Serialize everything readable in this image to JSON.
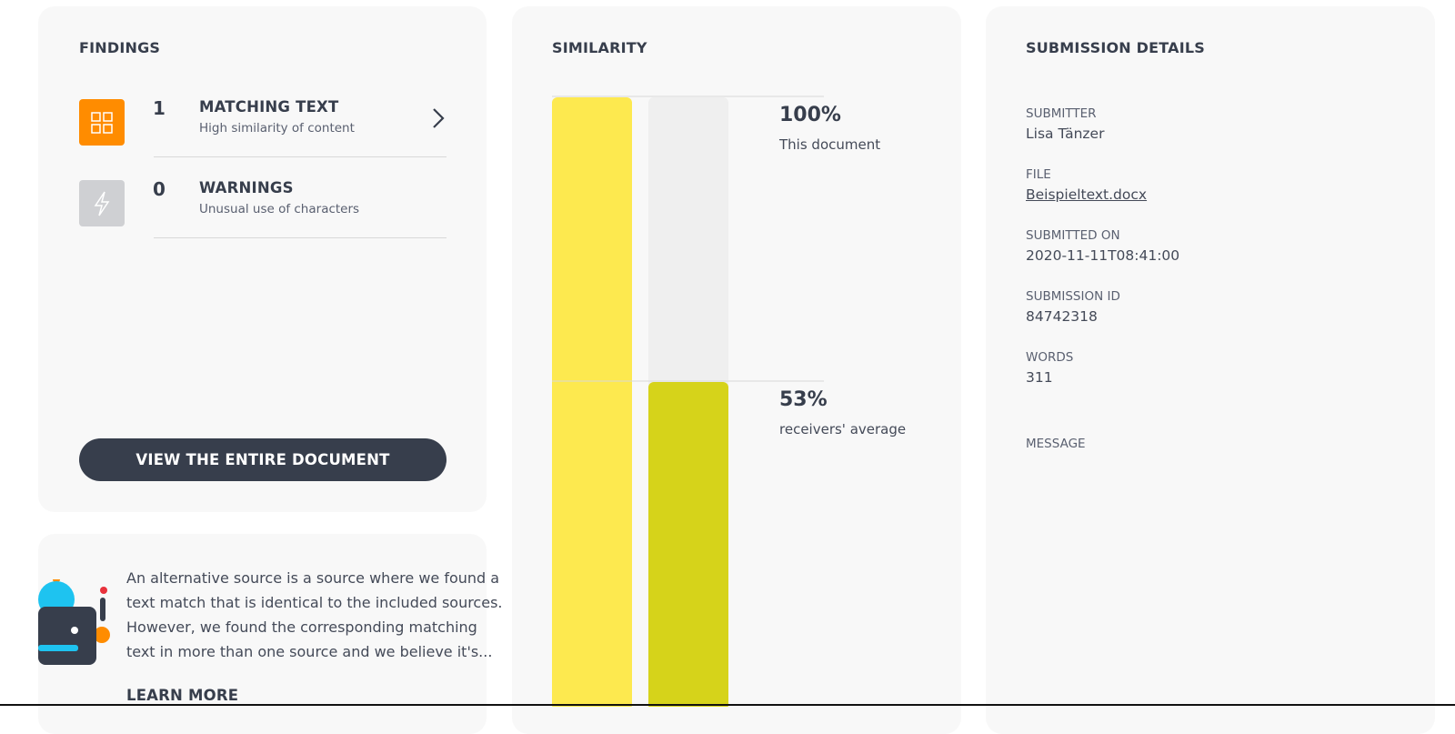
{
  "findings": {
    "title": "FINDINGS",
    "items": [
      {
        "count": 1,
        "title": "MATCHING TEXT",
        "description": "High similarity of content"
      },
      {
        "count": 0,
        "title": "WARNINGS",
        "description": "Unusual use of characters"
      }
    ],
    "button": "VIEW THE ENTIRE DOCUMENT"
  },
  "info": {
    "lines": [
      "An alternative source is a source where we found a",
      "text match that is identical to the included sources.",
      "However, we found the corresponding matching",
      "text in more than one source and we believe it's..."
    ],
    "link": "LEARN MORE"
  },
  "similarity": {
    "title": "SIMILARITY",
    "ylim": [
      0,
      100
    ],
    "bars": [
      {
        "value": 100,
        "label": "100%",
        "caption": "This document",
        "color": "#fde94f"
      },
      {
        "value": 53,
        "label": "53%",
        "caption": "receivers' average",
        "color": "#d6d31a"
      }
    ]
  },
  "submission": {
    "title": "SUBMISSION DETAILS",
    "fields": [
      {
        "label": "SUBMITTER",
        "value": "Lisa Tänzer"
      },
      {
        "label": "FILE",
        "value": "Beispieltext.docx"
      },
      {
        "label": "SUBMITTED ON",
        "value": "2020-11-11T08:41:00"
      },
      {
        "label": "SUBMISSION ID",
        "value": "84742318"
      },
      {
        "label": "WORDS",
        "value": 311
      }
    ],
    "message_label": "MESSAGE"
  }
}
